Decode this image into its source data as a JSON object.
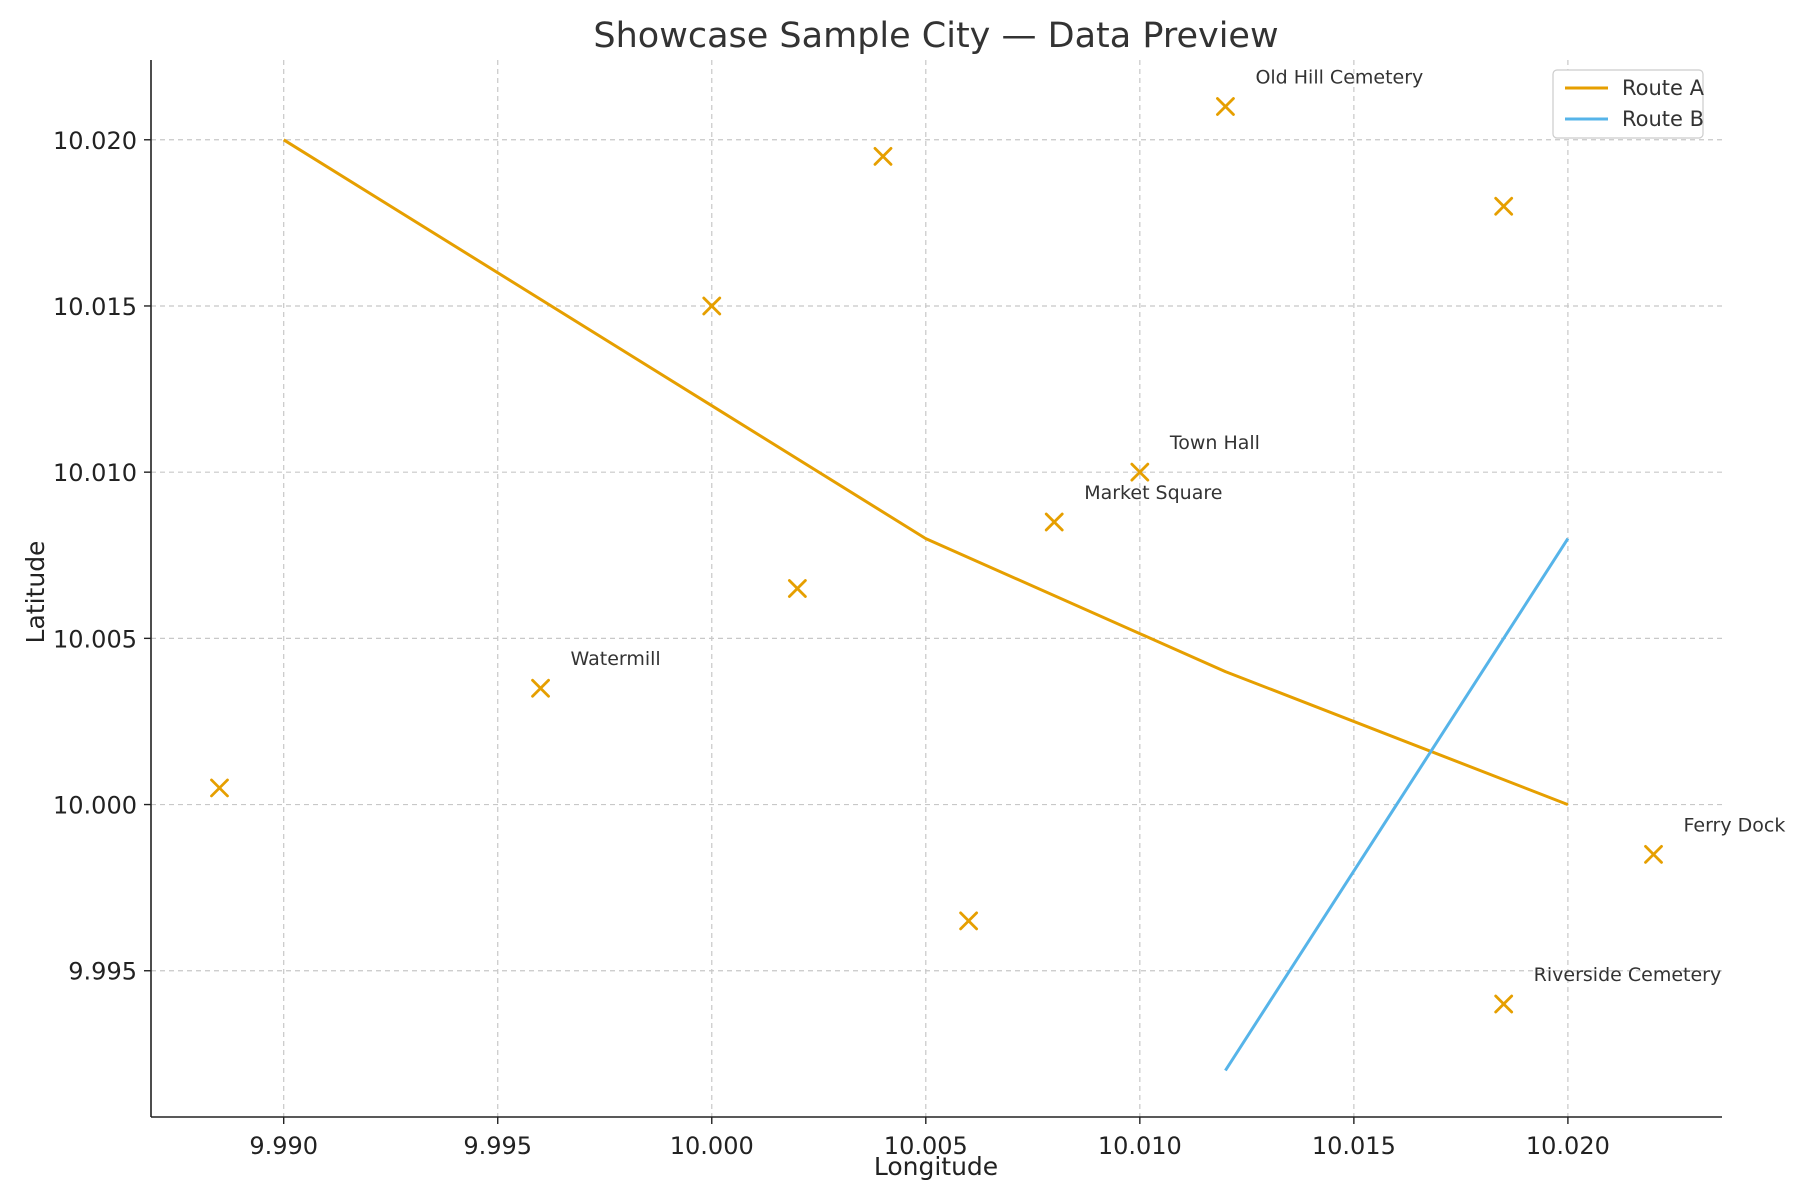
{
  "chart_data": {
    "type": "scatter",
    "title": "Showcase Sample City — Data Preview",
    "xlabel": "Longitude",
    "ylabel": "Latitude",
    "xlim": [
      9.9869,
      10.0236
    ],
    "ylim": [
      9.9906,
      10.0224
    ],
    "xticks": [
      9.99,
      9.995,
      10.0,
      10.005,
      10.01,
      10.015,
      10.02
    ],
    "xtick_labels": [
      "9.990",
      "9.995",
      "10.000",
      "10.005",
      "10.010",
      "10.015",
      "10.020"
    ],
    "yticks": [
      9.995,
      10.0,
      10.005,
      10.01,
      10.015,
      10.02
    ],
    "ytick_labels": [
      "9.995",
      "10.000",
      "10.005",
      "10.010",
      "10.015",
      "10.020"
    ],
    "grid": true,
    "legend_position": "top-right",
    "points": {
      "color": "#E69F00",
      "marker": "x",
      "items": [
        {
          "x": 9.9885,
          "y": 10.0005,
          "label": ""
        },
        {
          "x": 9.996,
          "y": 10.0035,
          "label": "Watermill"
        },
        {
          "x": 10.0,
          "y": 10.015,
          "label": ""
        },
        {
          "x": 10.002,
          "y": 10.0065,
          "label": ""
        },
        {
          "x": 10.004,
          "y": 10.0195,
          "label": ""
        },
        {
          "x": 10.006,
          "y": 9.9965,
          "label": ""
        },
        {
          "x": 10.008,
          "y": 10.0085,
          "label": "Market Square"
        },
        {
          "x": 10.01,
          "y": 10.01,
          "label": "Town Hall"
        },
        {
          "x": 10.012,
          "y": 10.021,
          "label": "Old Hill Cemetery"
        },
        {
          "x": 10.0185,
          "y": 10.018,
          "label": ""
        },
        {
          "x": 10.0185,
          "y": 9.994,
          "label": "Riverside Cemetery"
        },
        {
          "x": 10.022,
          "y": 9.9985,
          "label": "Ferry Dock"
        }
      ]
    },
    "series": [
      {
        "name": "Route A",
        "type": "line",
        "color": "#E69F00",
        "points": [
          [
            9.99,
            10.02
          ],
          [
            10.0,
            10.012
          ],
          [
            10.005,
            10.008
          ],
          [
            10.012,
            10.004
          ],
          [
            10.02,
            10.0
          ]
        ]
      },
      {
        "name": "Route B",
        "type": "line",
        "color": "#56B4E9",
        "points": [
          [
            10.012,
            9.992
          ],
          [
            10.02,
            10.008
          ]
        ]
      }
    ]
  }
}
